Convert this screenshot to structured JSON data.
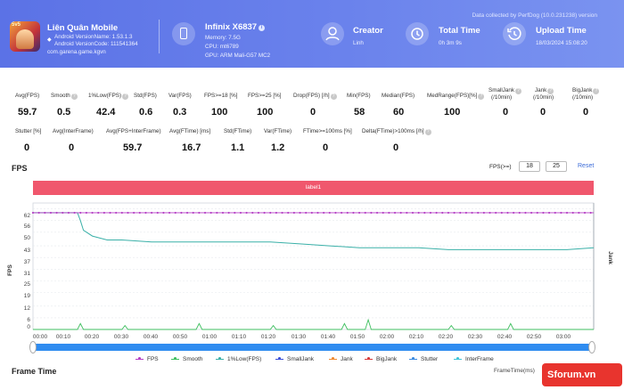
{
  "header": {
    "collected_note": "Data collected by PerfDog (10.0.231238) version",
    "app": {
      "name": "Liên Quân Mobile",
      "version_name": "Android VersionName: 1.53.1.3",
      "version_code": "Android VersionCode: 111541364",
      "package": "com.garena.game.kgvn",
      "icon_badge": "5v5"
    },
    "device": {
      "name": "Infinix X6837",
      "memory": "Memory: 7.5G",
      "cpu": "CPU: mt6789",
      "gpu": "GPU: ARM Mali-G57 MC2"
    },
    "creator": {
      "title": "Creator",
      "value": "Linh"
    },
    "total_time": {
      "title": "Total Time",
      "value": "0h 3m 9s"
    },
    "upload_time": {
      "title": "Upload Time",
      "value": "18/03/2024 15:08:20"
    }
  },
  "metrics_row1": [
    {
      "label": "Avg(FPS)",
      "value": "59.7",
      "help": false
    },
    {
      "label": "Smooth",
      "value": "0.5",
      "help": true
    },
    {
      "label": "1%Low(FPS)",
      "value": "42.4",
      "help": true
    },
    {
      "label": "Std(FPS)",
      "value": "0.6",
      "help": false
    },
    {
      "label": "Var(FPS)",
      "value": "0.3",
      "help": false
    },
    {
      "label": "FPS>=18 [%]",
      "value": "100",
      "help": false
    },
    {
      "label": "FPS>=25 [%]",
      "value": "100",
      "help": false
    },
    {
      "label": "Drop(FPS) [/h]",
      "value": "0",
      "help": true
    },
    {
      "label": "Min(FPS)",
      "value": "58",
      "help": false
    },
    {
      "label": "Median(FPS)",
      "value": "60",
      "help": false
    },
    {
      "label": "MedRange(FPS)[%]",
      "value": "100",
      "help": true
    },
    {
      "label": "SmallJank",
      "label2": "(/10min)",
      "value": "0",
      "help": true
    },
    {
      "label": "Jank",
      "label2": "(/10min)",
      "value": "0",
      "help": true
    },
    {
      "label": "BigJank",
      "label2": "(/10min)",
      "value": "0",
      "help": true
    }
  ],
  "metrics_row2": [
    {
      "label": "Stutter [%]",
      "value": "0",
      "help": false
    },
    {
      "label": "Avg(InterFrame)",
      "value": "0",
      "help": false
    },
    {
      "label": "Avg(FPS+InterFrame)",
      "value": "59.7",
      "help": false
    },
    {
      "label": "Avg(FTime) [ms]",
      "value": "16.7",
      "help": false
    },
    {
      "label": "Std(FTime)",
      "value": "1.1",
      "help": false
    },
    {
      "label": "Var(FTime)",
      "value": "1.2",
      "help": false
    },
    {
      "label": "FTime>=100ms [%]",
      "value": "0",
      "help": false
    },
    {
      "label": "Delta(FTime)>100ms [/h]",
      "value": "0",
      "help": true
    }
  ],
  "fps_section": {
    "title": "FPS",
    "threshold_label": "FPS(>=)",
    "threshold_1": "18",
    "threshold_2": "25",
    "reset_label": "Reset",
    "label_bar": "label1"
  },
  "chart_data": {
    "type": "line",
    "y_left_label": "FPS",
    "y_right_label": "Jank",
    "ylim": [
      0,
      65
    ],
    "y_ticks": [
      "62",
      "56",
      "50",
      "43",
      "37",
      "31",
      "25",
      "19",
      "12",
      "6",
      "0"
    ],
    "y_tick_values": [
      62,
      56,
      50,
      43,
      37,
      31,
      25,
      19,
      12,
      6,
      0
    ],
    "x_ticks": [
      "00:00",
      "00:10",
      "00:20",
      "00:30",
      "00:40",
      "00:50",
      "01:00",
      "01:10",
      "01:20",
      "01:30",
      "01:40",
      "01:50",
      "02:00",
      "02:10",
      "02:20",
      "02:30",
      "02:40",
      "02:50",
      "03:00"
    ],
    "x_range_seconds": [
      0,
      189
    ],
    "series": [
      {
        "name": "FPS",
        "color": "#b43ec4",
        "t": [
          0,
          189
        ],
        "values": [
          60,
          60
        ],
        "dotted": true
      },
      {
        "name": "Smooth",
        "color": "#3fbf5f",
        "t": [
          0,
          15,
          16,
          17,
          30,
          31,
          32,
          55,
          56,
          57,
          80,
          81,
          82,
          104,
          105,
          106,
          112,
          113,
          114,
          140,
          141,
          142,
          160,
          161,
          162,
          189
        ],
        "values": [
          0,
          0,
          3,
          0,
          0,
          2,
          0,
          0,
          3,
          0,
          0,
          2,
          0,
          0,
          3,
          0,
          0,
          5,
          0,
          0,
          2,
          0,
          0,
          3,
          0,
          0
        ]
      },
      {
        "name": "1%Low(FPS)",
        "color": "#3ab0a8",
        "t": [
          0,
          15,
          16,
          17,
          20,
          25,
          30,
          40,
          50,
          60,
          70,
          80,
          90,
          100,
          110,
          120,
          130,
          140,
          150,
          160,
          170,
          180,
          189
        ],
        "values": [
          60,
          60,
          56,
          51,
          48,
          46,
          46,
          45,
          45,
          45,
          45,
          45,
          44,
          43,
          42,
          42,
          42,
          41,
          41,
          41,
          41,
          41,
          42
        ]
      },
      {
        "name": "SmallJank",
        "color": "#3a4fd8"
      },
      {
        "name": "Jank",
        "color": "#f08a30"
      },
      {
        "name": "BigJank",
        "color": "#d83a3a"
      },
      {
        "name": "Stutter",
        "color": "#3a8ae0"
      },
      {
        "name": "InterFrame",
        "color": "#3fc4d8"
      }
    ]
  },
  "frame_time": {
    "title": "Frame Time",
    "right_label": "FrameTime(ms)"
  },
  "watermark": "Sforum.vn"
}
